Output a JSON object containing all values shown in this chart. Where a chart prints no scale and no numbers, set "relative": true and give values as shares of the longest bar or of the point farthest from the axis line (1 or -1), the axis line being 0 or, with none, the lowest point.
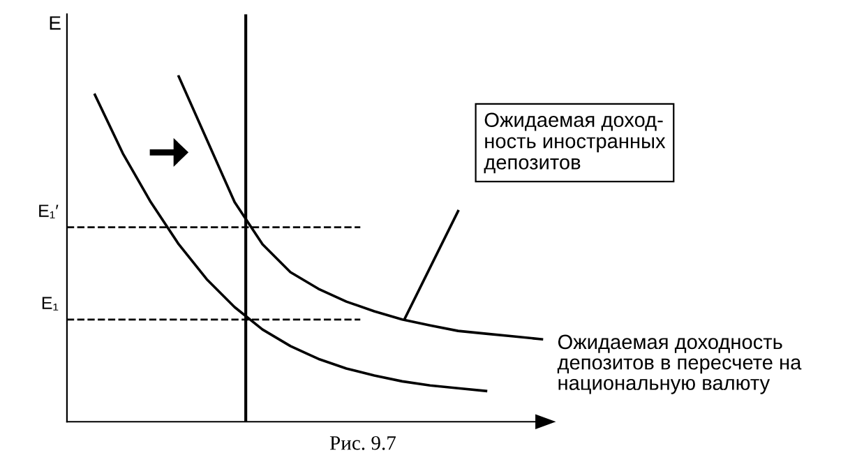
{
  "chart_data": {
    "type": "line",
    "relative": true,
    "ylabel": "E",
    "xlabel": "Ожидаемая доходность\nдепозитов в пересчете на\nнациональную валюту",
    "categories": [
      null,
      null,
      null,
      null,
      null,
      null,
      null,
      null,
      null,
      null,
      null,
      null,
      null,
      null,
      null,
      null,
      null,
      null
    ],
    "series": [
      {
        "color": "#000000",
        "values": [
          null,
          0.947,
          0.777,
          0.636,
          0.514,
          0.413,
          0.332,
          0.267,
          0.219,
          0.182,
          0.154,
          0.134,
          0.117,
          0.105,
          0.097,
          0.089,
          null,
          null
        ]
      },
      {
        "color": "#000000",
        "values": [
          null,
          null,
          null,
          null,
          1,
          0.818,
          0.636,
          0.514,
          0.433,
          0.385,
          0.348,
          0.32,
          0.296,
          0.279,
          0.263,
          0.255,
          0.247,
          0.239
        ]
      }
    ],
    "ref_lines": [
      {
        "axis": "y",
        "value": 0.563,
        "label": "E₁′",
        "line_style": "dashed",
        "color": "#000000"
      },
      {
        "axis": "y",
        "value": 0.296,
        "label": "E₁",
        "line_style": "dashed",
        "color": "#000000"
      }
    ],
    "annotations": [
      "Ожидаемая доход-\nность иностранных\nдепозитов",
      "Рис. 9.7"
    ],
    "marker": "none",
    "line_style": "solid",
    "grid": false,
    "legend": false
  }
}
